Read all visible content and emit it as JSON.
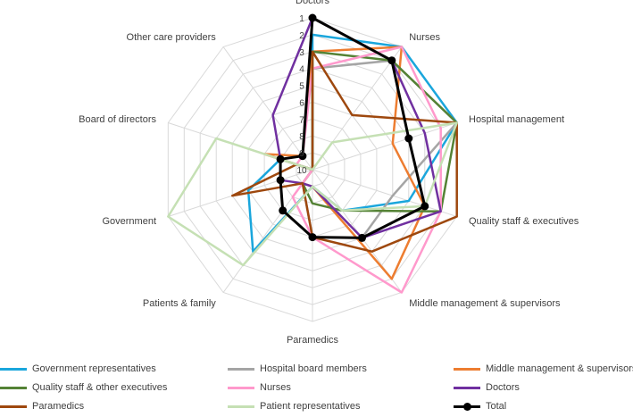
{
  "chart_data": {
    "type": "radar",
    "title": "",
    "axes": [
      "Doctors",
      "Nurses",
      "Hospital management",
      "Quality staff & executives",
      "Middle management & supervisors",
      "Paramedics",
      "Patients & family",
      "Government",
      "Board of directors",
      "Other care providers"
    ],
    "scale": {
      "min": 1,
      "max": 10,
      "reversed": true,
      "ticks": [
        "1",
        "2",
        "3",
        "4",
        "5",
        "6",
        "7",
        "8",
        "9",
        "10"
      ]
    },
    "series": [
      {
        "name": "Government representatives",
        "color": "#1aa6dc",
        "marker": false,
        "values": [
          2,
          1,
          1,
          4,
          7,
          9,
          4,
          6,
          8,
          10
        ]
      },
      {
        "name": "Hospital board members",
        "color": "#a5a5a5",
        "marker": false,
        "values": [
          4,
          2,
          1,
          5,
          5,
          6,
          9,
          10,
          9,
          10
        ]
      },
      {
        "name": "Middle management & supervisors",
        "color": "#ed7d31",
        "marker": false,
        "values": [
          3,
          1,
          5,
          3,
          2,
          9,
          9,
          10,
          7,
          9
        ]
      },
      {
        "name": "Quality staff & other executives",
        "color": "#548235",
        "marker": false,
        "values": [
          3,
          2,
          1,
          2,
          7,
          8,
          9,
          10,
          9,
          10
        ]
      },
      {
        "name": "Nurses",
        "color": "#ff99cc",
        "marker": false,
        "values": [
          4,
          1,
          2,
          2,
          1,
          6,
          8,
          10,
          9,
          9
        ]
      },
      {
        "name": "Doctors",
        "color": "#7030a0",
        "marker": false,
        "values": [
          1,
          2,
          3,
          2,
          5,
          9,
          9,
          8,
          8,
          6
        ]
      },
      {
        "name": "Paramedics",
        "color": "#9e480e",
        "marker": false,
        "values": [
          3,
          6,
          1,
          1,
          4,
          6,
          9,
          5,
          9,
          10
        ]
      },
      {
        "name": "Patient representatives",
        "color": "#c5e0b4",
        "marker": false,
        "values": [
          10,
          8,
          1,
          3,
          7,
          9,
          3,
          1,
          4,
          10
        ]
      },
      {
        "name": "Total",
        "color": "#000000",
        "marker": true,
        "values": [
          1,
          2,
          4,
          3,
          5,
          6,
          7,
          8,
          8,
          9
        ]
      }
    ],
    "legend_position": "bottom"
  }
}
